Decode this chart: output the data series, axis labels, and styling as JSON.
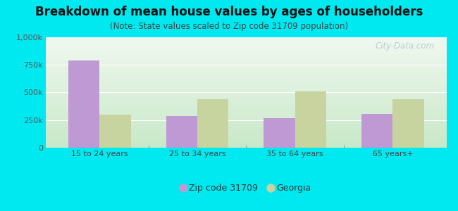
{
  "title": "Breakdown of mean house values by ages of householders",
  "subtitle": "(Note: State values scaled to Zip code 31709 population)",
  "categories": [
    "15 to 24 years",
    "25 to 34 years",
    "35 to 64 years",
    "65 years+"
  ],
  "zip_values": [
    790000,
    285000,
    265000,
    305000
  ],
  "state_values": [
    300000,
    435000,
    510000,
    440000
  ],
  "zip_color": "#bf99d4",
  "state_color": "#c8d4a0",
  "background_color": "#00e8f0",
  "plot_bg_top": "#f0f8f0",
  "plot_bg_bottom": "#c8e8c8",
  "ylim": [
    0,
    1000000
  ],
  "yticks": [
    0,
    250000,
    500000,
    750000,
    1000000
  ],
  "ytick_labels": [
    "0",
    "250k",
    "500k",
    "750k",
    "1,000k"
  ],
  "legend_zip_label": "Zip code 31709",
  "legend_state_label": "Georgia",
  "title_fontsize": 12,
  "subtitle_fontsize": 8.5,
  "tick_fontsize": 8,
  "legend_fontsize": 9,
  "bar_width": 0.32,
  "watermark": "City-Data.com"
}
